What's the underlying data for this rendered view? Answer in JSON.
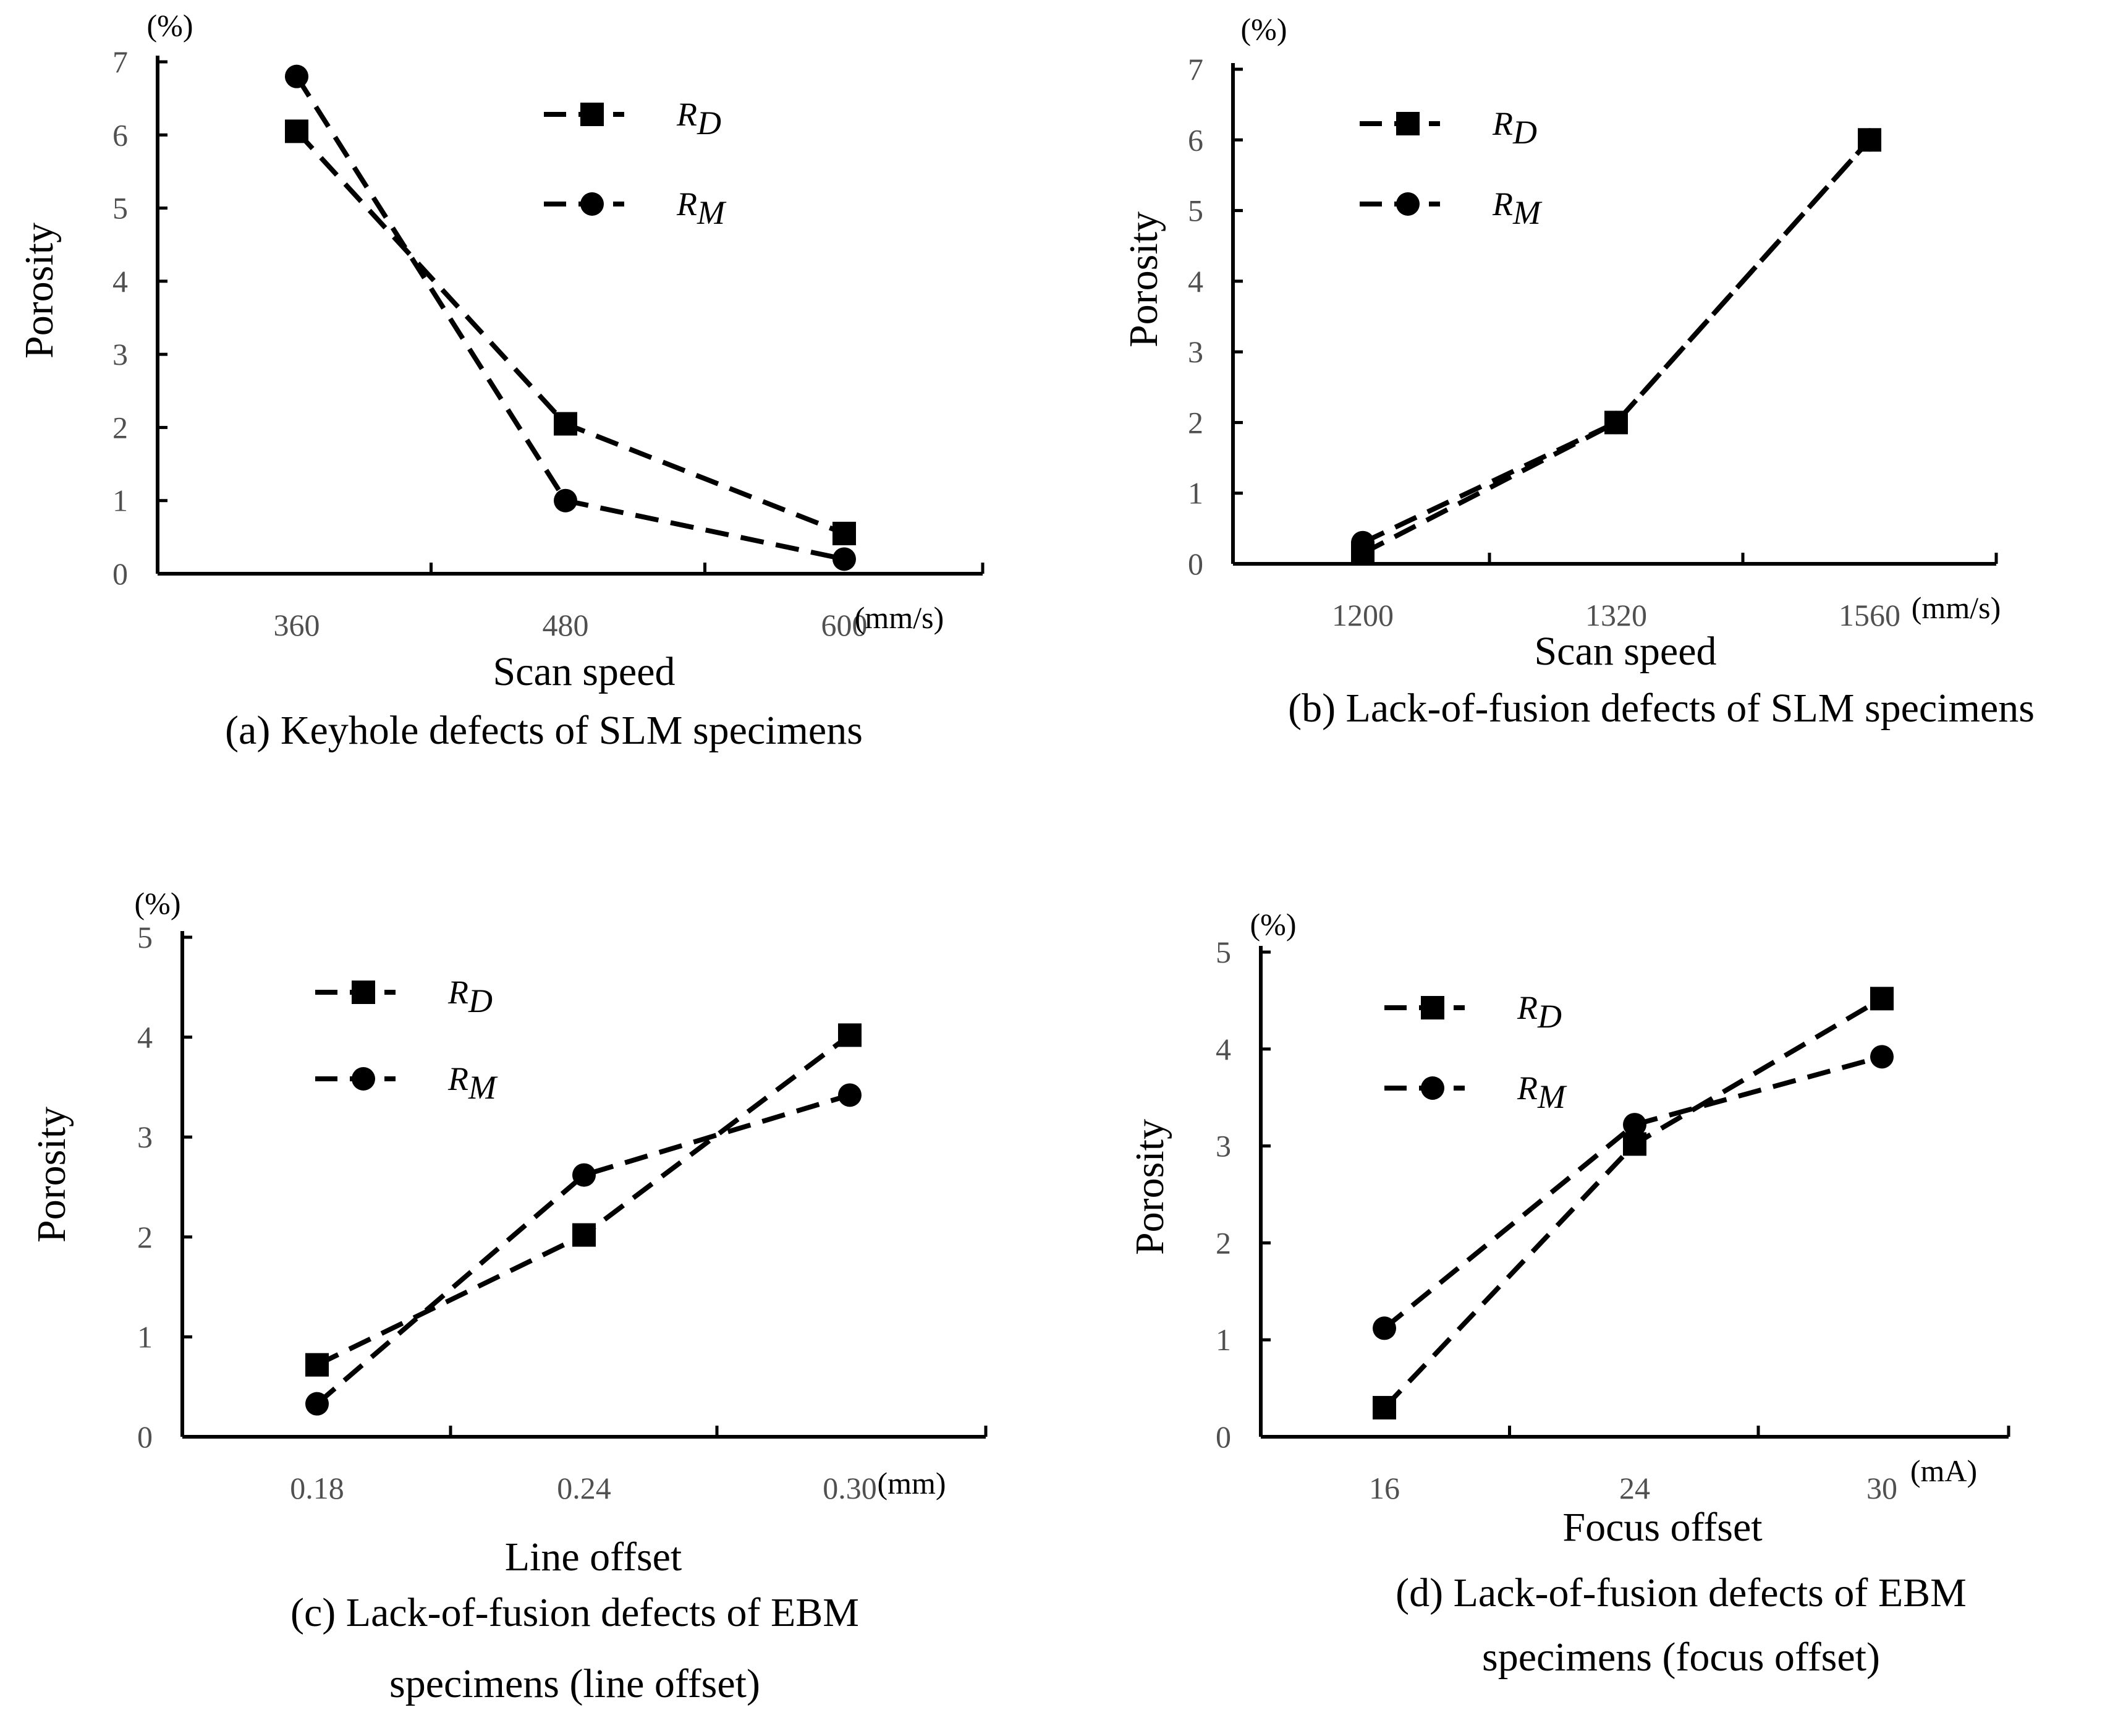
{
  "colors": {
    "line": "#000000",
    "tick_text": "#505050",
    "background": "#ffffff"
  },
  "chart_data": [
    {
      "id": "a",
      "type": "line",
      "title": "",
      "caption": [
        "(a) Keyhole defects of SLM specimens"
      ],
      "xlabel": "Scan speed",
      "ylabel": "Porosity",
      "y_unit": "(%)",
      "x_unit": "(mm/s)",
      "categories": [
        "360",
        "480",
        "600"
      ],
      "ylim": [
        0,
        7
      ],
      "yticks": [
        "0",
        "1",
        "2",
        "3",
        "4",
        "5",
        "6",
        "7"
      ],
      "grid": false,
      "legend_position": "top-right",
      "series": [
        {
          "name": "R",
          "subscript": "D",
          "marker": "square",
          "values": [
            6.05,
            2.05,
            0.55
          ]
        },
        {
          "name": "R",
          "subscript": "M",
          "marker": "circle",
          "values": [
            6.8,
            1.0,
            0.2
          ]
        }
      ]
    },
    {
      "id": "b",
      "type": "line",
      "title": "",
      "caption": [
        "(b) Lack-of-fusion defects of SLM specimens"
      ],
      "xlabel": "Scan speed",
      "ylabel": "Porosity",
      "y_unit": "(%)",
      "x_unit": "(mm/s)",
      "categories": [
        "1200",
        "1320",
        "1560"
      ],
      "ylim": [
        0,
        7
      ],
      "yticks": [
        "0",
        "1",
        "2",
        "3",
        "4",
        "5",
        "6",
        "7"
      ],
      "grid": false,
      "legend_position": "top-left",
      "series": [
        {
          "name": "R",
          "subscript": "D",
          "marker": "square",
          "values": [
            0.15,
            2.0,
            6.0
          ]
        },
        {
          "name": "R",
          "subscript": "M",
          "marker": "circle",
          "values": [
            0.3,
            2.0,
            6.0
          ]
        }
      ]
    },
    {
      "id": "c",
      "type": "line",
      "title": "",
      "caption": [
        "(c) Lack-of-fusion defects of EBM",
        "specimens (line offset)"
      ],
      "xlabel": "Line offset",
      "ylabel": "Porosity",
      "y_unit": "(%)",
      "x_unit": "(mm)",
      "categories": [
        "0.18",
        "0.24",
        "0.30"
      ],
      "ylim": [
        0,
        5
      ],
      "yticks": [
        "0",
        "1",
        "2",
        "3",
        "4",
        "5"
      ],
      "grid": false,
      "legend_position": "top-left",
      "series": [
        {
          "name": "R",
          "subscript": "D",
          "marker": "square",
          "values": [
            0.72,
            2.02,
            4.02
          ]
        },
        {
          "name": "R",
          "subscript": "M",
          "marker": "circle",
          "values": [
            0.33,
            2.62,
            3.42
          ]
        }
      ]
    },
    {
      "id": "d",
      "type": "line",
      "title": "",
      "caption": [
        "(d) Lack-of-fusion defects of EBM",
        "specimens (focus offset)"
      ],
      "xlabel": "Focus offset",
      "ylabel": "Porosity",
      "y_unit": "(%)",
      "x_unit": "(mA)",
      "categories": [
        "16",
        "24",
        "30"
      ],
      "ylim": [
        0,
        5
      ],
      "yticks": [
        "0",
        "1",
        "2",
        "3",
        "4",
        "5"
      ],
      "grid": false,
      "legend_position": "top-left",
      "series": [
        {
          "name": "R",
          "subscript": "D",
          "marker": "square",
          "values": [
            0.3,
            3.02,
            4.52
          ]
        },
        {
          "name": "R",
          "subscript": "M",
          "marker": "circle",
          "values": [
            1.12,
            3.22,
            3.92
          ]
        }
      ]
    }
  ]
}
